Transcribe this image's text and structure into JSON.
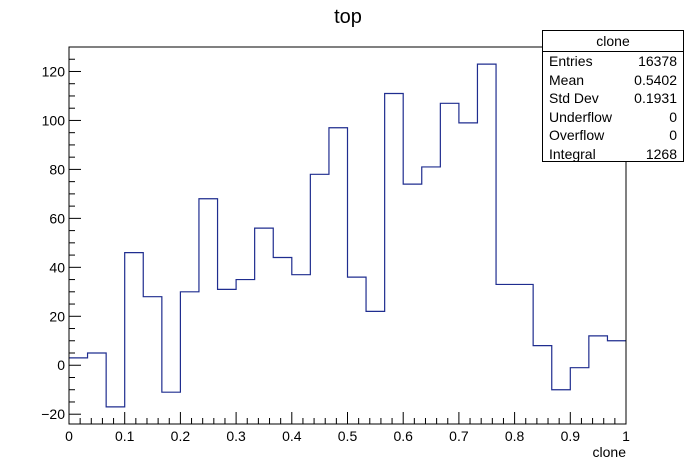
{
  "chart_data": {
    "type": "histogram",
    "title": "top",
    "xlabel": "clone",
    "ylabel": "",
    "xlim": [
      0,
      1
    ],
    "ylim": [
      -24,
      130
    ],
    "x_ticks": [
      "0",
      "0.1",
      "0.2",
      "0.3",
      "0.4",
      "0.5",
      "0.6",
      "0.7",
      "0.8",
      "0.9",
      "1"
    ],
    "y_ticks": [
      "−20",
      "0",
      "20",
      "40",
      "60",
      "80",
      "100",
      "120"
    ],
    "y_tick_values": [
      -20,
      0,
      20,
      40,
      60,
      80,
      100,
      120
    ],
    "bin_edges": [
      0,
      0.0333,
      0.0667,
      0.1,
      0.1333,
      0.1667,
      0.2,
      0.2333,
      0.2667,
      0.3,
      0.3333,
      0.3667,
      0.4,
      0.4333,
      0.4667,
      0.5,
      0.5333,
      0.5667,
      0.6,
      0.6333,
      0.6667,
      0.7,
      0.7333,
      0.7667,
      0.8,
      0.8333,
      0.8667,
      0.9,
      0.9333,
      0.9667,
      1
    ],
    "values": [
      3,
      5,
      -17,
      46,
      28,
      -11,
      30,
      68,
      31,
      35,
      56,
      44,
      37,
      78,
      97,
      36,
      22,
      111,
      74,
      81,
      107,
      99,
      123,
      33,
      33,
      8,
      -10,
      -1,
      12,
      10
    ],
    "line_color": "#1f2d8f",
    "grid": false
  },
  "stats": {
    "title": "clone",
    "rows": [
      {
        "label": "Entries",
        "value": "16378"
      },
      {
        "label": "Mean",
        "value": "0.5402"
      },
      {
        "label": "Std Dev",
        "value": "0.1931"
      },
      {
        "label": "Underflow",
        "value": "0"
      },
      {
        "label": "Overflow",
        "value": "0"
      },
      {
        "label": "Integral",
        "value": "1268"
      }
    ]
  }
}
